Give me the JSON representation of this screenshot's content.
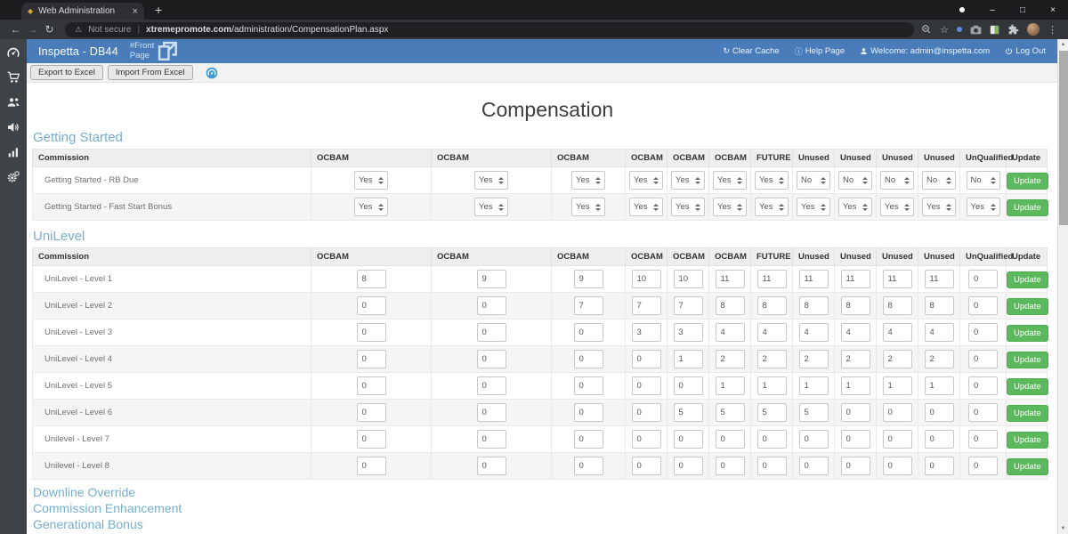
{
  "browser": {
    "tab_title": "Web Administration",
    "url_security": "Not secure",
    "url_domain": "xtremepromote.com",
    "url_path": "/administration/CompensationPlan.aspx"
  },
  "icons": {
    "close": "×",
    "new_tab": "+",
    "minimize": "–",
    "maximize": "□",
    "menu": "⋮",
    "back": "←",
    "forward": "→",
    "reload": "↻",
    "warning": "⚠",
    "star": "☆",
    "pipe": "|",
    "info": "ⓘ",
    "clear_cache_glyph": "↻",
    "scroll_up": "▲",
    "scroll_down": "▼"
  },
  "app_header": {
    "brand": "Inspetta - DB44",
    "front_page_link": "#Front Page",
    "clear_cache": "Clear Cache",
    "help_page": "Help Page",
    "welcome": "Welcome: admin@inspetta.com",
    "log_out": "Log Out"
  },
  "toolbar": {
    "export_button": "Export to Excel",
    "import_button": "Import From Excel"
  },
  "page": {
    "title": "Compensation",
    "links": [
      "Downline Override",
      "Commission Enhancement",
      "Generational Bonus"
    ]
  },
  "columns": [
    "Commission",
    "OCBAM",
    "OCBAM",
    "OCBAM",
    "OCBAM",
    "OCBAM",
    "OCBAM",
    "FUTURE",
    "Unused",
    "Unused",
    "Unused",
    "Unused",
    "UnQualified",
    "Update"
  ],
  "update_label": "Update",
  "sections": [
    {
      "heading": "Getting Started",
      "control": "select",
      "rows": [
        {
          "label": "Getting Started - RB Due",
          "values": [
            "Yes",
            "Yes",
            "Yes",
            "Yes",
            "Yes",
            "Yes",
            "Yes",
            "No",
            "No",
            "No",
            "No",
            "No"
          ]
        },
        {
          "label": "Getting Started - Fast Start Bonus",
          "values": [
            "Yes",
            "Yes",
            "Yes",
            "Yes",
            "Yes",
            "Yes",
            "Yes",
            "Yes",
            "Yes",
            "Yes",
            "Yes",
            "Yes"
          ]
        }
      ]
    },
    {
      "heading": "UniLevel",
      "control": "input",
      "rows": [
        {
          "label": "UniLevel - Level 1",
          "values": [
            "8",
            "9",
            "9",
            "10",
            "10",
            "11",
            "11",
            "11",
            "11",
            "11",
            "11",
            "0"
          ]
        },
        {
          "label": "UniLevel - Level 2",
          "values": [
            "0",
            "0",
            "7",
            "7",
            "7",
            "8",
            "8",
            "8",
            "8",
            "8",
            "8",
            "0"
          ]
        },
        {
          "label": "UniLevel - Level 3",
          "values": [
            "0",
            "0",
            "0",
            "3",
            "3",
            "4",
            "4",
            "4",
            "4",
            "4",
            "4",
            "0"
          ]
        },
        {
          "label": "UniLevel - Level 4",
          "values": [
            "0",
            "0",
            "0",
            "0",
            "1",
            "2",
            "2",
            "2",
            "2",
            "2",
            "2",
            "0"
          ]
        },
        {
          "label": "UniLevel - Level 5",
          "values": [
            "0",
            "0",
            "0",
            "0",
            "0",
            "1",
            "1",
            "1",
            "1",
            "1",
            "1",
            "0"
          ]
        },
        {
          "label": "UniLevel - Level 6",
          "values": [
            "0",
            "0",
            "0",
            "0",
            "5",
            "5",
            "5",
            "5",
            "0",
            "0",
            "0",
            "0"
          ]
        },
        {
          "label": "Unilevel - Level 7",
          "values": [
            "0",
            "0",
            "0",
            "0",
            "0",
            "0",
            "0",
            "0",
            "0",
            "0",
            "0",
            "0"
          ]
        },
        {
          "label": "Unilevel - Level 8",
          "values": [
            "0",
            "0",
            "0",
            "0",
            "0",
            "0",
            "0",
            "0",
            "0",
            "0",
            "0",
            "0"
          ]
        }
      ]
    }
  ],
  "colors": {
    "header_blue": "#4a7cba",
    "heading_link_blue": "#76aecd",
    "update_green": "#5cb85c",
    "sidebar_dark": "#3e4347"
  }
}
